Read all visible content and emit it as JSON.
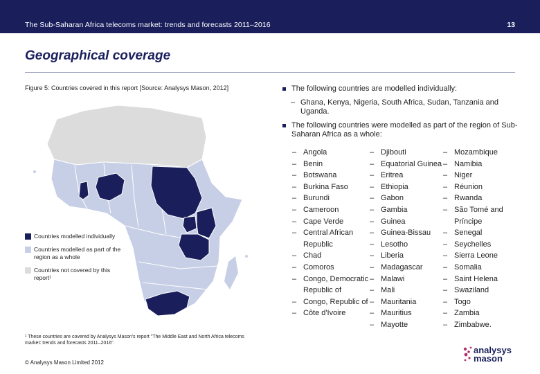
{
  "header": {
    "doc_title": "The Sub-Saharan Africa telecoms market: trends and forecasts 2011–2016",
    "page_number": "13"
  },
  "page_title": "Geographical coverage",
  "figure_caption": "Figure 5: Countries covered in this report [Source: Analysys Mason, 2012]",
  "legend": {
    "items": [
      {
        "label": "Countries modelled individually",
        "color": "#1a1f5c"
      },
      {
        "label": "Countries modelled as part of the region as a whole",
        "color": "#c7cfe6"
      },
      {
        "label": "Countries not covered by this report¹",
        "color": "#dcdcdc"
      }
    ]
  },
  "footnote": "¹ These countries are covered by Analysys Mason's report \"The Middle East and North Africa telecoms market: trends and forecasts 2011–2016\".",
  "copyright": "© Analysys Mason Limited 2012",
  "logo": {
    "line1": "analysys",
    "line2": "mason"
  },
  "content": {
    "bullet1": "The following countries are modelled individually:",
    "bullet1_sub": "Ghana, Kenya, Nigeria, South Africa, Sudan, Tanzania and Uganda.",
    "bullet2": "The following countries were modelled as part of the region of Sub-Saharan Africa as a whole:",
    "dash": "–",
    "col1": [
      "Angola",
      "Benin",
      "Botswana",
      "Burkina Faso",
      "Burundi",
      "Cameroon",
      "Cape Verde",
      "Central African Republic",
      "Chad",
      "Comoros",
      "Congo, Democratic Republic of",
      "Congo, Republic of",
      "Côte d'Ivoire"
    ],
    "col2": [
      "Djibouti",
      "Equatorial Guinea",
      "Eritrea",
      "Ethiopia",
      "Gabon",
      "Gambia",
      "Guinea",
      "Guinea-Bissau",
      "Lesotho",
      "Liberia",
      "Madagascar",
      "Malawi",
      "Mali",
      "Mauritania",
      "Mauritius",
      "Mayotte"
    ],
    "col3": [
      "Mozambique",
      "Namibia",
      "Niger",
      "Réunion",
      "Rwanda",
      "São Tomé and Príncipe",
      "Senegal",
      "Seychelles",
      "Sierra Leone",
      "Somalia",
      "Saint Helena",
      "Swaziland",
      "Togo",
      "Zambia",
      "Zimbabwe."
    ]
  },
  "colors": {
    "navy": "#1a1f5c",
    "light_blue": "#c7cfe6",
    "grey": "#dcdcdc"
  }
}
